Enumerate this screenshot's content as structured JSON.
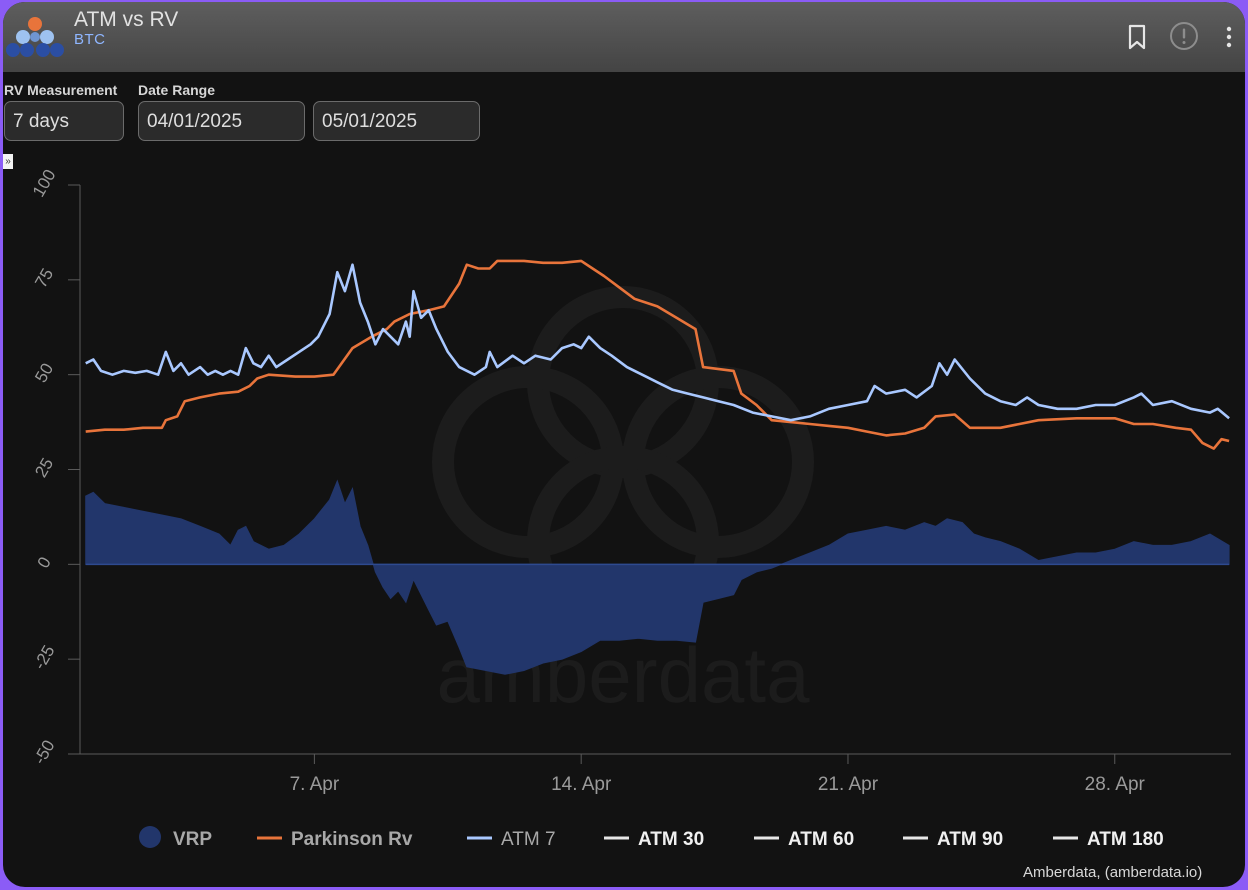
{
  "header": {
    "title": "ATM vs RV",
    "subtitle": "BTC",
    "bookmark_icon": "bookmark-icon",
    "info_icon": "exclamation-circle-icon",
    "more_icon": "vertical-dots-icon"
  },
  "controls": {
    "rv_label": "RV Measurement",
    "rv_value": "7 days",
    "date_label": "Date Range",
    "start_date": "04/01/2025",
    "end_date": "05/01/2025",
    "toggle_glyph": "»"
  },
  "colors": {
    "vrp": "#22366b",
    "parkinson": "#e8743b",
    "atm7": "#a9c8ff",
    "atm_other": "#e6e6e6",
    "axis_text": "#9a9a9a",
    "watermark": "#1c1c1c"
  },
  "watermark": "amberdata",
  "credit": "Amberdata, (amberdata.io)",
  "chart_data": {
    "type": "line",
    "x_unit": "days",
    "x_start": "04/01/2025",
    "xlim": [
      0.85,
      31.05
    ],
    "ylim": [
      -50,
      100
    ],
    "y_ticks": [
      -50,
      -25,
      0,
      25,
      50,
      75,
      100
    ],
    "x_ticks": [
      {
        "value": 7,
        "label": "7. Apr"
      },
      {
        "value": 14,
        "label": "14. Apr"
      },
      {
        "value": 21,
        "label": "21. Apr"
      },
      {
        "value": 28,
        "label": "28. Apr"
      }
    ],
    "grid": false,
    "legend_position": "bottom",
    "series": [
      {
        "name": "Parkinson Rv",
        "type": "line",
        "points": [
          [
            1.0,
            35
          ],
          [
            1.5,
            35.5
          ],
          [
            2.0,
            35.5
          ],
          [
            2.5,
            36
          ],
          [
            3.0,
            36
          ],
          [
            3.1,
            38
          ],
          [
            3.4,
            39
          ],
          [
            3.6,
            43
          ],
          [
            4.0,
            44
          ],
          [
            4.5,
            45
          ],
          [
            5.0,
            45.5
          ],
          [
            5.3,
            47
          ],
          [
            5.5,
            49
          ],
          [
            5.8,
            50
          ],
          [
            6.5,
            49.5
          ],
          [
            7.0,
            49.5
          ],
          [
            7.5,
            50
          ],
          [
            8.0,
            57
          ],
          [
            8.5,
            60
          ],
          [
            8.9,
            62
          ],
          [
            9.1,
            64
          ],
          [
            9.5,
            66
          ],
          [
            10.0,
            67
          ],
          [
            10.4,
            68
          ],
          [
            10.8,
            74
          ],
          [
            11.0,
            79
          ],
          [
            11.3,
            78
          ],
          [
            11.6,
            78
          ],
          [
            11.8,
            80
          ],
          [
            12.5,
            80
          ],
          [
            13.0,
            79.5
          ],
          [
            13.5,
            79.5
          ],
          [
            14.0,
            80
          ],
          [
            14.3,
            78
          ],
          [
            14.6,
            76
          ],
          [
            15.0,
            73
          ],
          [
            15.4,
            70
          ],
          [
            16.0,
            68
          ],
          [
            16.5,
            65
          ],
          [
            17.0,
            62
          ],
          [
            17.2,
            52
          ],
          [
            18.0,
            51
          ],
          [
            18.2,
            45
          ],
          [
            18.6,
            42
          ],
          [
            19.0,
            38
          ],
          [
            19.5,
            37.5
          ],
          [
            20.0,
            37
          ],
          [
            20.5,
            36.5
          ],
          [
            21.0,
            36
          ],
          [
            21.5,
            35
          ],
          [
            22.0,
            34
          ],
          [
            22.5,
            34.5
          ],
          [
            23.0,
            36
          ],
          [
            23.3,
            39
          ],
          [
            23.8,
            39.5
          ],
          [
            24.2,
            36
          ],
          [
            25.0,
            36
          ],
          [
            25.5,
            37
          ],
          [
            26.0,
            38
          ],
          [
            27.0,
            38.5
          ],
          [
            28.0,
            38.5
          ],
          [
            28.5,
            37
          ],
          [
            29.0,
            37
          ],
          [
            29.6,
            36
          ],
          [
            30.0,
            35.5
          ],
          [
            30.3,
            32
          ],
          [
            30.6,
            30.5
          ],
          [
            30.8,
            33
          ],
          [
            31.0,
            32.5
          ]
        ]
      },
      {
        "name": "ATM 7",
        "type": "line",
        "points": [
          [
            1.0,
            53
          ],
          [
            1.2,
            54
          ],
          [
            1.4,
            51
          ],
          [
            1.7,
            50
          ],
          [
            2.0,
            51
          ],
          [
            2.3,
            50.5
          ],
          [
            2.6,
            51
          ],
          [
            2.9,
            50
          ],
          [
            3.1,
            56
          ],
          [
            3.3,
            51
          ],
          [
            3.5,
            53
          ],
          [
            3.7,
            50
          ],
          [
            4.0,
            52
          ],
          [
            4.2,
            50
          ],
          [
            4.4,
            51
          ],
          [
            4.6,
            50
          ],
          [
            4.8,
            51
          ],
          [
            5.0,
            50
          ],
          [
            5.2,
            57
          ],
          [
            5.4,
            53
          ],
          [
            5.6,
            52
          ],
          [
            5.8,
            55
          ],
          [
            6.0,
            52
          ],
          [
            6.3,
            54
          ],
          [
            6.6,
            56
          ],
          [
            6.9,
            58
          ],
          [
            7.1,
            60
          ],
          [
            7.4,
            66
          ],
          [
            7.6,
            77
          ],
          [
            7.8,
            72
          ],
          [
            8.0,
            79
          ],
          [
            8.2,
            69
          ],
          [
            8.4,
            64
          ],
          [
            8.6,
            58
          ],
          [
            8.8,
            62
          ],
          [
            9.0,
            60
          ],
          [
            9.2,
            58
          ],
          [
            9.4,
            64
          ],
          [
            9.5,
            60
          ],
          [
            9.6,
            72
          ],
          [
            9.8,
            65
          ],
          [
            10.0,
            67
          ],
          [
            10.2,
            62
          ],
          [
            10.5,
            56
          ],
          [
            10.8,
            52
          ],
          [
            11.2,
            50
          ],
          [
            11.5,
            52
          ],
          [
            11.6,
            56
          ],
          [
            11.8,
            52
          ],
          [
            12.2,
            55
          ],
          [
            12.5,
            53
          ],
          [
            12.8,
            55
          ],
          [
            13.2,
            54
          ],
          [
            13.5,
            57
          ],
          [
            13.8,
            58
          ],
          [
            14.0,
            57
          ],
          [
            14.2,
            60
          ],
          [
            14.5,
            57
          ],
          [
            14.8,
            55
          ],
          [
            15.2,
            52
          ],
          [
            15.6,
            50
          ],
          [
            16.0,
            48
          ],
          [
            16.4,
            46
          ],
          [
            16.8,
            45
          ],
          [
            17.2,
            44
          ],
          [
            17.6,
            43
          ],
          [
            18.0,
            42
          ],
          [
            18.5,
            40
          ],
          [
            19.0,
            39
          ],
          [
            19.5,
            38
          ],
          [
            20.0,
            39
          ],
          [
            20.5,
            41
          ],
          [
            21.0,
            42
          ],
          [
            21.5,
            43
          ],
          [
            21.7,
            47
          ],
          [
            22.0,
            45
          ],
          [
            22.5,
            46
          ],
          [
            22.8,
            44
          ],
          [
            23.2,
            47
          ],
          [
            23.4,
            53
          ],
          [
            23.6,
            50
          ],
          [
            23.8,
            54
          ],
          [
            24.2,
            49
          ],
          [
            24.6,
            45
          ],
          [
            25.0,
            43
          ],
          [
            25.4,
            42
          ],
          [
            25.7,
            44
          ],
          [
            26.0,
            42
          ],
          [
            26.5,
            41
          ],
          [
            27.0,
            41
          ],
          [
            27.5,
            42
          ],
          [
            28.0,
            42
          ],
          [
            28.5,
            44
          ],
          [
            28.7,
            45
          ],
          [
            29.0,
            42
          ],
          [
            29.5,
            43
          ],
          [
            30.0,
            41
          ],
          [
            30.5,
            40
          ],
          [
            30.7,
            41
          ],
          [
            31.0,
            38.5
          ]
        ]
      },
      {
        "name": "VRP",
        "type": "area",
        "points": [
          [
            1.0,
            18
          ],
          [
            1.2,
            19
          ],
          [
            1.5,
            16
          ],
          [
            2.0,
            15
          ],
          [
            2.5,
            14
          ],
          [
            3.0,
            13
          ],
          [
            3.5,
            12
          ],
          [
            4.0,
            10
          ],
          [
            4.5,
            8
          ],
          [
            4.8,
            5
          ],
          [
            5.0,
            9
          ],
          [
            5.2,
            10
          ],
          [
            5.4,
            6
          ],
          [
            5.8,
            4
          ],
          [
            6.2,
            5
          ],
          [
            6.6,
            8
          ],
          [
            7.0,
            12
          ],
          [
            7.4,
            17
          ],
          [
            7.6,
            22
          ],
          [
            7.8,
            16
          ],
          [
            8.0,
            20
          ],
          [
            8.2,
            10
          ],
          [
            8.4,
            5
          ],
          [
            8.6,
            -2
          ],
          [
            8.8,
            -6
          ],
          [
            9.0,
            -9
          ],
          [
            9.2,
            -7
          ],
          [
            9.4,
            -10
          ],
          [
            9.6,
            -4
          ],
          [
            9.8,
            -8
          ],
          [
            10.0,
            -12
          ],
          [
            10.2,
            -16
          ],
          [
            10.5,
            -15
          ],
          [
            10.8,
            -22
          ],
          [
            11.0,
            -27
          ],
          [
            11.5,
            -28
          ],
          [
            12.0,
            -29
          ],
          [
            12.5,
            -28
          ],
          [
            13.0,
            -26
          ],
          [
            13.5,
            -25
          ],
          [
            14.0,
            -23
          ],
          [
            14.5,
            -20
          ],
          [
            15.0,
            -20
          ],
          [
            15.5,
            -19.5
          ],
          [
            16.0,
            -20
          ],
          [
            16.5,
            -20
          ],
          [
            17.0,
            -20.5
          ],
          [
            17.2,
            -10
          ],
          [
            17.6,
            -9
          ],
          [
            18.0,
            -8
          ],
          [
            18.2,
            -4
          ],
          [
            18.6,
            -2
          ],
          [
            19.0,
            -1
          ],
          [
            19.5,
            1
          ],
          [
            20.0,
            3
          ],
          [
            20.5,
            5
          ],
          [
            21.0,
            8
          ],
          [
            21.5,
            9
          ],
          [
            22.0,
            10
          ],
          [
            22.5,
            9
          ],
          [
            23.0,
            11
          ],
          [
            23.3,
            10
          ],
          [
            23.6,
            12
          ],
          [
            24.0,
            11
          ],
          [
            24.3,
            8
          ],
          [
            24.6,
            7
          ],
          [
            25.0,
            6
          ],
          [
            25.5,
            4
          ],
          [
            26.0,
            1
          ],
          [
            26.5,
            2
          ],
          [
            27.0,
            3
          ],
          [
            27.5,
            3
          ],
          [
            28.0,
            4
          ],
          [
            28.5,
            6
          ],
          [
            29.0,
            5
          ],
          [
            29.5,
            5
          ],
          [
            30.0,
            6
          ],
          [
            30.5,
            8
          ],
          [
            31.0,
            5
          ]
        ]
      },
      {
        "name": "ATM 30",
        "type": "line",
        "points": []
      },
      {
        "name": "ATM 60",
        "type": "line",
        "points": []
      },
      {
        "name": "ATM 90",
        "type": "line",
        "points": []
      },
      {
        "name": "ATM 180",
        "type": "line",
        "points": []
      }
    ],
    "legend": [
      "VRP",
      "Parkinson Rv",
      "ATM 7",
      "ATM 30",
      "ATM 60",
      "ATM 90",
      "ATM 180"
    ]
  }
}
